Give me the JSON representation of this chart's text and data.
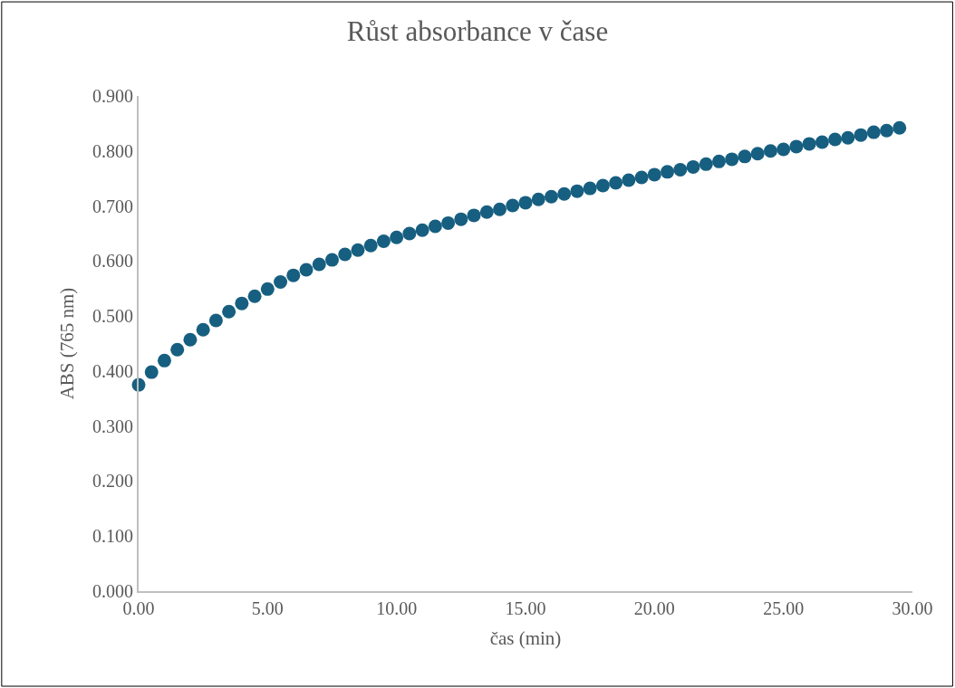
{
  "chart_data": {
    "type": "scatter",
    "title": "Růst absorbance v čase",
    "xlabel": "čas (min)",
    "ylabel": "ABS (765 nm)",
    "x": [
      0,
      0.5,
      1,
      1.5,
      2,
      2.5,
      3,
      3.5,
      4,
      4.5,
      5,
      5.5,
      6,
      6.5,
      7,
      7.5,
      8,
      8.5,
      9,
      9.5,
      10,
      10.5,
      11,
      11.5,
      12,
      12.5,
      13,
      13.5,
      14,
      14.5,
      15,
      15.5,
      16,
      16.5,
      17,
      17.5,
      18,
      18.5,
      19,
      19.5,
      20,
      20.5,
      21,
      21.5,
      22,
      22.5,
      23,
      23.5,
      24,
      24.5,
      25,
      25.5,
      26,
      26.5,
      27,
      27.5,
      28,
      28.5,
      29,
      29.5
    ],
    "series": [
      {
        "color": "#175f80",
        "values": [
          0.375,
          0.398,
          0.419,
          0.439,
          0.457,
          0.475,
          0.492,
          0.508,
          0.523,
          0.536,
          0.549,
          0.562,
          0.574,
          0.584,
          0.594,
          0.602,
          0.612,
          0.62,
          0.628,
          0.636,
          0.643,
          0.65,
          0.656,
          0.663,
          0.669,
          0.676,
          0.683,
          0.689,
          0.694,
          0.701,
          0.706,
          0.712,
          0.717,
          0.722,
          0.727,
          0.732,
          0.737,
          0.742,
          0.747,
          0.752,
          0.757,
          0.762,
          0.766,
          0.771,
          0.776,
          0.781,
          0.785,
          0.79,
          0.795,
          0.8,
          0.803,
          0.808,
          0.813,
          0.816,
          0.821,
          0.824,
          0.829,
          0.834,
          0.837,
          0.842
        ]
      }
    ],
    "xlim": [
      0,
      30
    ],
    "xticks": [
      {
        "value": 0,
        "label": "0.00"
      },
      {
        "value": 5,
        "label": "5.00"
      },
      {
        "value": 10,
        "label": "10.00"
      },
      {
        "value": 15,
        "label": "15.00"
      },
      {
        "value": 20,
        "label": "20.00"
      },
      {
        "value": 25,
        "label": "25.00"
      },
      {
        "value": 30,
        "label": "30.00"
      }
    ],
    "ylim": [
      0,
      0.9
    ],
    "yticks": [
      {
        "value": 0,
        "label": "0.000"
      },
      {
        "value": 0.1,
        "label": "0.100"
      },
      {
        "value": 0.2,
        "label": "0.200"
      },
      {
        "value": 0.3,
        "label": "0.300"
      },
      {
        "value": 0.4,
        "label": "0.400"
      },
      {
        "value": 0.5,
        "label": "0.500"
      },
      {
        "value": 0.6,
        "label": "0.600"
      },
      {
        "value": 0.7,
        "label": "0.700"
      },
      {
        "value": 0.8,
        "label": "0.800"
      },
      {
        "value": 0.9,
        "label": "0.900"
      }
    ],
    "marker": "circle"
  }
}
